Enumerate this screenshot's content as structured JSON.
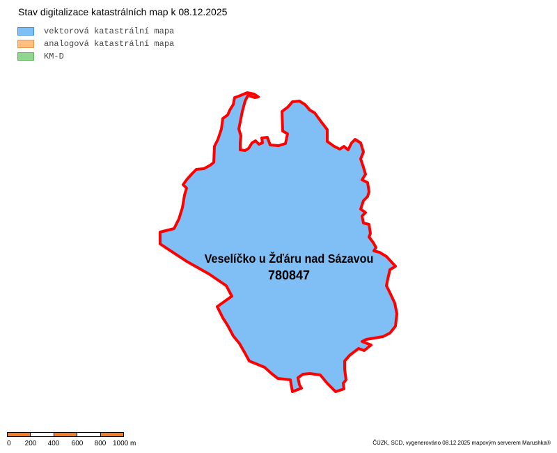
{
  "title": "Stav digitalizace katastrálních map k 08.12.2025",
  "legend": [
    {
      "label": "vektorová katastrální mapa",
      "fill": "#80bff5",
      "stroke": "#3d8fd9"
    },
    {
      "label": "analogová katastrální mapa",
      "fill": "#ffbf80",
      "stroke": "#e8934a"
    },
    {
      "label": "KM-D",
      "fill": "#90d490",
      "stroke": "#5fb35f"
    }
  ],
  "map": {
    "area_name": "Veselíčko u Žďáru nad Sázavou",
    "area_code": "780847",
    "area_fill": "#80bff5",
    "boundary_color": "#ff0000"
  },
  "scale": {
    "ticks": [
      "0",
      "200",
      "400",
      "600",
      "800",
      "1000 m"
    ],
    "colors": [
      "#f07d2a",
      "#ffffff"
    ]
  },
  "credit": "ČÚZK, SCD, vygenerováno 08.12.2025 mapovým serverem Marushka®"
}
